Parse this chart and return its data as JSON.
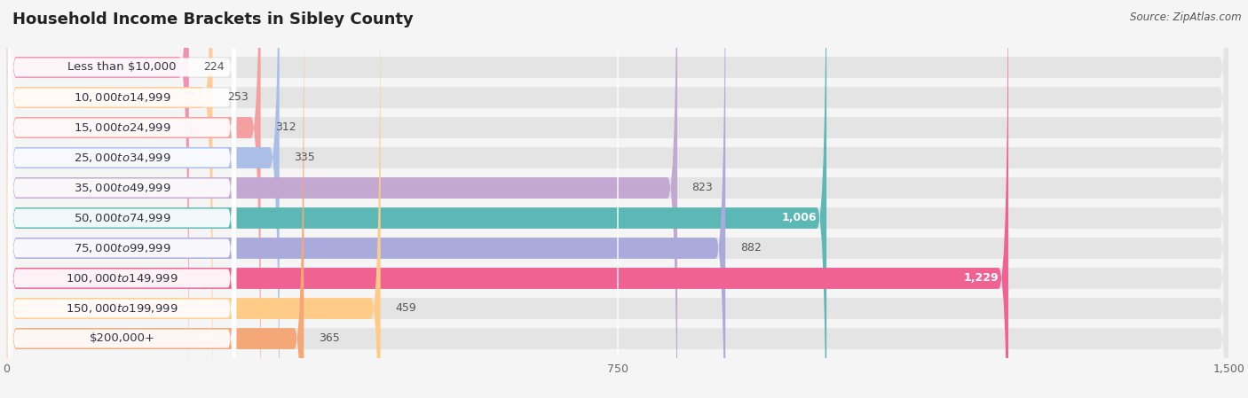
{
  "title": "Household Income Brackets in Sibley County",
  "source": "Source: ZipAtlas.com",
  "categories": [
    "Less than $10,000",
    "$10,000 to $14,999",
    "$15,000 to $24,999",
    "$25,000 to $34,999",
    "$35,000 to $49,999",
    "$50,000 to $74,999",
    "$75,000 to $99,999",
    "$100,000 to $149,999",
    "$150,000 to $199,999",
    "$200,000+"
  ],
  "values": [
    224,
    253,
    312,
    335,
    823,
    1006,
    882,
    1229,
    459,
    365
  ],
  "bar_colors": [
    "#F48FB1",
    "#FFCC99",
    "#F4A0A0",
    "#AABFE8",
    "#C3A8D1",
    "#5BB8B4",
    "#AAAADD",
    "#F06292",
    "#FFCC88",
    "#F4A878"
  ],
  "xlim": [
    0,
    1500
  ],
  "xticks": [
    0,
    750,
    1500
  ],
  "background_color": "#f5f5f5",
  "bar_bg_color": "#e4e4e4",
  "label_bg_color": "#ffffff",
  "title_fontsize": 13,
  "label_fontsize": 9.5,
  "value_fontsize": 9,
  "source_fontsize": 8.5,
  "value_inside_color": "#ffffff",
  "value_outside_color": "#555555",
  "label_text_color": "#333344",
  "inside_value_threshold": 1006
}
